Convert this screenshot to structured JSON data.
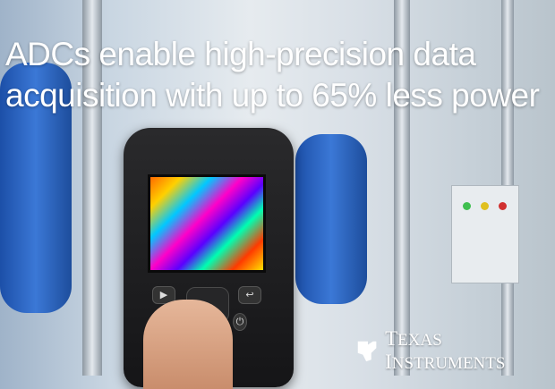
{
  "headline": {
    "line1": "ADCs enable high-precision data",
    "line2": "acquisition with up to 65% less power"
  },
  "brand": {
    "logo_text": "Texas Instruments",
    "first": "T",
    "first_rest": "EXAS ",
    "second": "I",
    "second_rest": "NSTRUMENTS",
    "color": "#ffffff"
  },
  "camera": {
    "icons": [
      "play-icon",
      "back-arrow-icon",
      "power-icon"
    ]
  }
}
